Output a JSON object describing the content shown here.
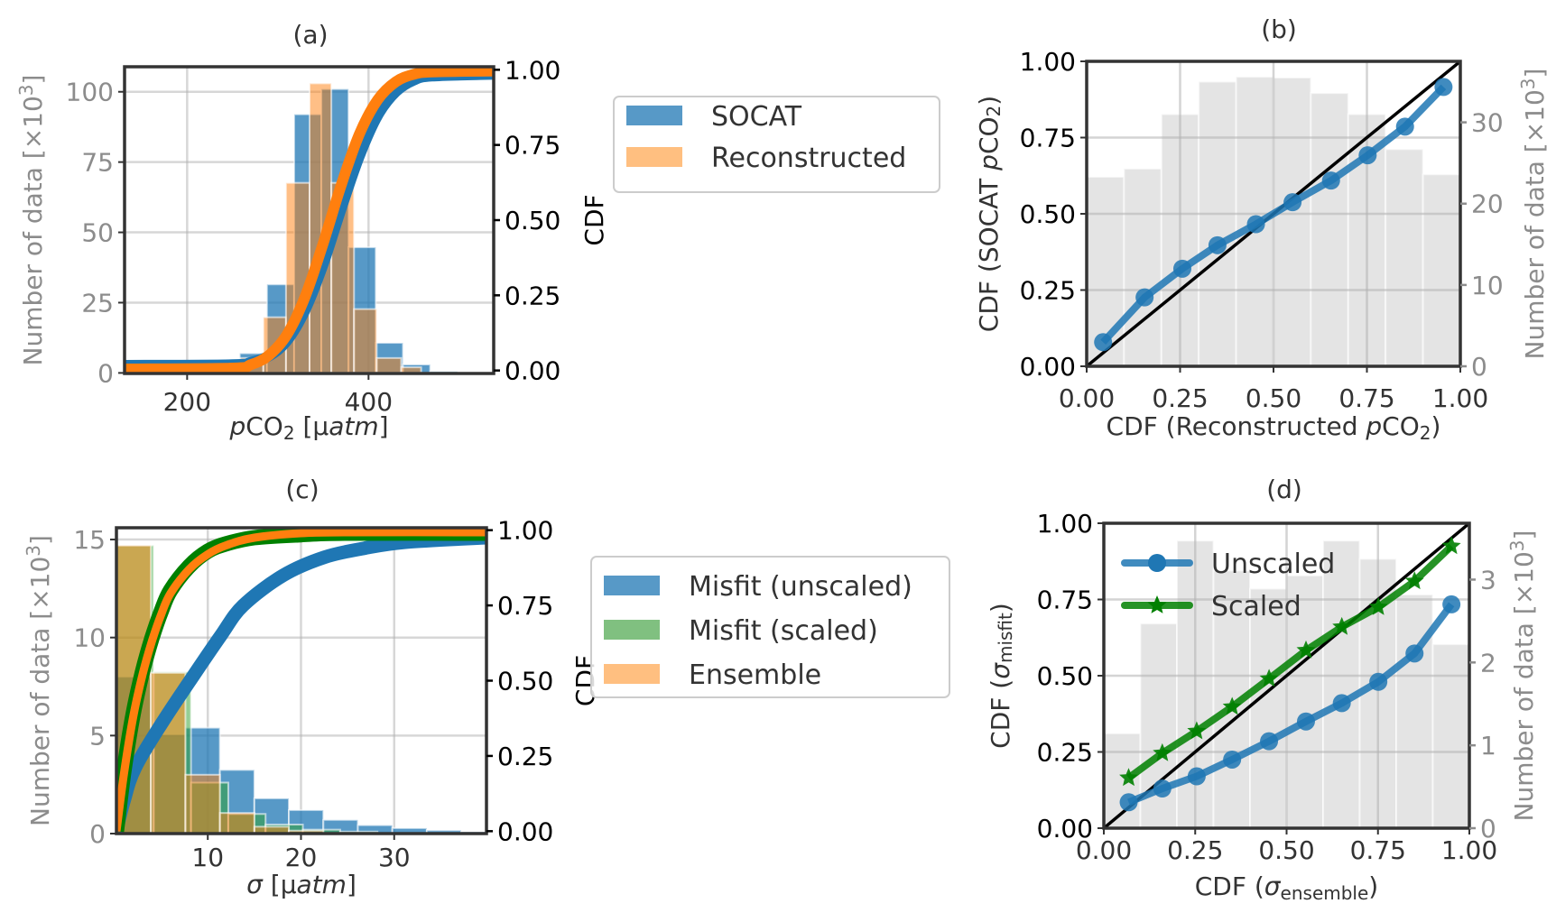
{
  "chart_data": [
    {
      "type": "bar+line",
      "title": "(a)",
      "xaxis": {
        "label": [
          {
            "t": "p",
            "i": true
          },
          {
            "t": "CO"
          },
          {
            "t": "2",
            "sub": true
          },
          {
            "t": " [µ"
          },
          {
            "t": "atm",
            "i": true
          },
          {
            "t": "]"
          }
        ],
        "xlim": [
          131,
          538
        ],
        "ticks": [
          200,
          400
        ],
        "tick_labels": [
          "200",
          "400"
        ],
        "color": "#333333"
      },
      "left_axis": {
        "label": [
          {
            "t": "Number of data [×10"
          },
          {
            "t": "3",
            "sup": true
          },
          {
            "t": "]"
          }
        ],
        "ylim": [
          -0.2,
          108.9
        ],
        "ticks": [
          0,
          25,
          50,
          75,
          100
        ],
        "tick_labels": [
          "0",
          "25",
          "50",
          "75",
          "100"
        ],
        "color": "#8c8c8c"
      },
      "right_axis": {
        "label": [
          {
            "t": "CDF"
          }
        ],
        "ylim": [
          -0.01,
          1.01
        ],
        "ticks": [
          0,
          0.25,
          0.5,
          0.75,
          1
        ],
        "tick_labels": [
          "0.00",
          "0.25",
          "0.50",
          "0.75",
          "1.00"
        ],
        "color": "#000000"
      },
      "grid": true,
      "bars": [
        {
          "name": "SOCAT",
          "axis": "left",
          "color": "#1f77b4",
          "opacity": 0.75,
          "edges": [
            258,
            288,
            318,
            348,
            378,
            408,
            438,
            468,
            498
          ],
          "counts": [
            7,
            31.5,
            92,
            101,
            44.7,
            10.7,
            3,
            0.5
          ]
        },
        {
          "name": "Reconstructed",
          "axis": "left",
          "color": "#ff7f0e",
          "opacity": 0.5,
          "edges": [
            259,
            284,
            309,
            335,
            359,
            384,
            409,
            436,
            458
          ],
          "counts": [
            5.3,
            19.8,
            67.6,
            103,
            67.6,
            22.7,
            5.3,
            2
          ]
        }
      ],
      "series": [
        {
          "axis": "right",
          "color": "#1f77b4",
          "kind": "curve",
          "x": [
            131,
            250,
            270,
            290,
            310,
            330,
            350,
            370,
            390,
            410,
            430,
            450,
            470,
            538
          ],
          "y": [
            0.017,
            0.019,
            0.027,
            0.048,
            0.099,
            0.201,
            0.354,
            0.54,
            0.714,
            0.848,
            0.927,
            0.966,
            0.979,
            0.985
          ]
        },
        {
          "axis": "right",
          "color": "#ff7f0e",
          "kind": "curve",
          "x": [
            131,
            250,
            270,
            290,
            310,
            330,
            350,
            370,
            390,
            410,
            430,
            450,
            470,
            538
          ],
          "y": [
            0.005,
            0.008,
            0.019,
            0.05,
            0.119,
            0.245,
            0.423,
            0.618,
            0.787,
            0.9,
            0.96,
            0.985,
            0.993,
            0.996
          ]
        }
      ],
      "legend": {
        "placement": "outside-right",
        "frame": true,
        "entries": [
          {
            "label": "SOCAT",
            "color": "#1f77b4",
            "kind": "patch"
          },
          {
            "label": "Reconstructed",
            "color": "#ffbf80",
            "kind": "patch"
          }
        ]
      }
    },
    {
      "type": "bar+line",
      "title": "(b)",
      "xaxis": {
        "label": [
          {
            "t": "CDF (Reconstructed "
          },
          {
            "t": "p",
            "i": true
          },
          {
            "t": "CO"
          },
          {
            "t": "2",
            "sub": true
          },
          {
            "t": ")"
          }
        ],
        "xlim": [
          0,
          1
        ],
        "ticks": [
          0,
          0.25,
          0.5,
          0.75,
          1
        ],
        "tick_labels": [
          "0.00",
          "0.25",
          "0.50",
          "0.75",
          "1.00"
        ],
        "color": "#333333"
      },
      "left_axis": {
        "label": [
          {
            "t": "CDF (SOCAT "
          },
          {
            "t": "p",
            "i": true
          },
          {
            "t": "CO"
          },
          {
            "t": "2",
            "sub": true
          },
          {
            "t": ")"
          }
        ],
        "ylim": [
          0,
          1
        ],
        "ticks": [
          0,
          0.25,
          0.5,
          0.75,
          1
        ],
        "tick_labels": [
          "0.00",
          "0.25",
          "0.50",
          "0.75",
          "1.00"
        ],
        "color": "#000000"
      },
      "right_axis": {
        "label": [
          {
            "t": "Number of data [×10"
          },
          {
            "t": "3",
            "sup": true
          },
          {
            "t": "]"
          }
        ],
        "ylim": [
          0,
          37.5
        ],
        "ticks": [
          0,
          10,
          20,
          30
        ],
        "tick_labels": [
          "0",
          "10",
          "20",
          "30"
        ],
        "color": "#8c8c8c"
      },
      "grid": true,
      "bars": [
        {
          "axis": "right",
          "color": "#d9d9d9",
          "opacity": 0.7,
          "edges": [
            0,
            0.1,
            0.2,
            0.3,
            0.4,
            0.5,
            0.6,
            0.7,
            0.8,
            0.9,
            1.0
          ],
          "counts": [
            23.3,
            24.3,
            31.0,
            35.0,
            35.6,
            35.5,
            33.6,
            31.0,
            26.7,
            23.6
          ]
        }
      ],
      "reference_line": {
        "x": [
          0,
          1
        ],
        "y": [
          0,
          1
        ],
        "color": "#000000"
      },
      "series": [
        {
          "axis": "left",
          "color": "#1f77b4",
          "kind": "line",
          "marker": "circle",
          "x": [
            0.044,
            0.155,
            0.256,
            0.35,
            0.453,
            0.551,
            0.654,
            0.752,
            0.852,
            0.955
          ],
          "y": [
            0.079,
            0.226,
            0.32,
            0.397,
            0.466,
            0.538,
            0.609,
            0.692,
            0.786,
            0.916
          ]
        }
      ]
    },
    {
      "type": "bar+line",
      "title": "(c)",
      "xaxis": {
        "label": [
          {
            "t": "σ",
            "i": true
          },
          {
            "t": " [µ"
          },
          {
            "t": "atm",
            "i": true
          },
          {
            "t": "]"
          }
        ],
        "xlim": [
          0.2,
          39.9
        ],
        "ticks": [
          10,
          20,
          30
        ],
        "tick_labels": [
          "10",
          "20",
          "30"
        ],
        "color": "#333333"
      },
      "left_axis": {
        "label": [
          {
            "t": "Number of data [×10"
          },
          {
            "t": "3",
            "sup": true
          },
          {
            "t": "]"
          }
        ],
        "ylim": [
          0,
          15.6
        ],
        "ticks": [
          0,
          5,
          10,
          15
        ],
        "tick_labels": [
          "0",
          "5",
          "10",
          "15"
        ],
        "color": "#8c8c8c"
      },
      "right_axis": {
        "label": [
          {
            "t": "CDF"
          }
        ],
        "ylim": [
          -0.008,
          1.008
        ],
        "ticks": [
          0,
          0.25,
          0.5,
          0.75,
          1
        ],
        "tick_labels": [
          "0.00",
          "0.25",
          "0.50",
          "0.75",
          "1.00"
        ],
        "color": "#000000"
      },
      "grid": true,
      "bars": [
        {
          "name": "Misfit (unscaled)",
          "axis": "left",
          "color": "#1f77b4",
          "opacity": 0.75,
          "edges": [
            0.2,
            3.9,
            7.6,
            11.3,
            15.0,
            18.7,
            22.4,
            26.1,
            29.8,
            33.5,
            37.2,
            40.9
          ],
          "counts": [
            8.0,
            5.06,
            5.4,
            3.25,
            1.8,
            1.2,
            0.7,
            0.43,
            0.28,
            0.17,
            0.09
          ]
        },
        {
          "name": "Misfit (scaled)",
          "axis": "left",
          "color": "#2ca02c",
          "opacity": 0.5,
          "edges": [
            0.2,
            4.2,
            8.2,
            12.2,
            16.2,
            20.2,
            24.2,
            28.2
          ],
          "counts": [
            14.7,
            8.25,
            2.6,
            1.0,
            0.46,
            0.2,
            0.1
          ]
        },
        {
          "name": "Ensemble",
          "axis": "left",
          "color": "#ff7f0e",
          "opacity": 0.5,
          "edges": [
            0.2,
            3.9,
            7.6,
            11.3,
            15.0,
            18.7,
            22.4
          ],
          "counts": [
            14.7,
            8.2,
            3.0,
            1.05,
            0.35,
            0.15
          ]
        }
      ],
      "series": [
        {
          "axis": "right",
          "color": "#1f77b4",
          "kind": "curve",
          "weight": "heavy",
          "x": [
            0.2,
            1,
            2.2,
            5.1,
            8.1,
            11.4,
            13.8,
            18.1,
            22.5,
            26.8,
            31.2,
            39.9
          ],
          "y": [
            0,
            0.1,
            0.21,
            0.36,
            0.5,
            0.65,
            0.75,
            0.85,
            0.91,
            0.94,
            0.96,
            0.975
          ]
        },
        {
          "axis": "right",
          "color": "#008000",
          "kind": "curve",
          "weight": "heavy",
          "x": [
            0.2,
            1,
            2,
            3,
            4,
            5,
            6,
            8,
            10,
            12,
            15,
            20,
            25,
            39.9
          ],
          "y": [
            0,
            0.2,
            0.39,
            0.53,
            0.64,
            0.73,
            0.8,
            0.88,
            0.93,
            0.955,
            0.975,
            0.985,
            0.99,
            0.99
          ]
        },
        {
          "axis": "right",
          "color": "#ff7f0e",
          "kind": "curve",
          "weight": "medium",
          "x": [
            0.2,
            1,
            2,
            3,
            4,
            5,
            6,
            8,
            10,
            12,
            15,
            20,
            25,
            39.9
          ],
          "y": [
            0,
            0.19,
            0.38,
            0.52,
            0.63,
            0.72,
            0.79,
            0.87,
            0.92,
            0.95,
            0.975,
            0.99,
            0.993,
            0.993
          ]
        }
      ],
      "legend": {
        "placement": "outside-right",
        "frame": true,
        "entries": [
          {
            "label": "Misfit (unscaled)",
            "color": "#1f77b4",
            "kind": "patch"
          },
          {
            "label": "Misfit (scaled)",
            "color": "#80c080",
            "kind": "patch"
          },
          {
            "label": "Ensemble",
            "color": "#ffbf80",
            "kind": "patch"
          }
        ]
      }
    },
    {
      "type": "bar+line",
      "title": "(d)",
      "xaxis": {
        "label": [
          {
            "t": "CDF ("
          },
          {
            "t": "σ",
            "i": true
          },
          {
            "t": "ensemble",
            "sub": true
          },
          {
            "t": ")"
          }
        ],
        "xlim": [
          0,
          1
        ],
        "ticks": [
          0,
          0.25,
          0.5,
          0.75,
          1
        ],
        "tick_labels": [
          "0.00",
          "0.25",
          "0.50",
          "0.75",
          "1.00"
        ],
        "color": "#333333"
      },
      "left_axis": {
        "label": [
          {
            "t": "CDF ("
          },
          {
            "t": "σ",
            "i": true
          },
          {
            "t": "misfit",
            "sub": true
          },
          {
            "t": ")"
          }
        ],
        "ylim": [
          0,
          1
        ],
        "ticks": [
          0,
          0.25,
          0.5,
          0.75,
          1
        ],
        "tick_labels": [
          "0.00",
          "0.25",
          "0.50",
          "0.75",
          "1.00"
        ],
        "color": "#000000"
      },
      "right_axis": {
        "label": [
          {
            "t": "Number of data [×10"
          },
          {
            "t": "3",
            "sup": true
          },
          {
            "t": "]"
          }
        ],
        "ylim": [
          0,
          3.68
        ],
        "ticks": [
          0,
          1,
          2,
          3
        ],
        "tick_labels": [
          "0",
          "1",
          "2",
          "3"
        ],
        "color": "#8c8c8c"
      },
      "grid": true,
      "bars": [
        {
          "axis": "right",
          "color": "#d9d9d9",
          "opacity": 0.7,
          "edges": [
            0,
            0.1,
            0.2,
            0.3,
            0.4,
            0.5,
            0.6,
            0.7,
            0.8,
            0.9,
            1.0
          ],
          "counts": [
            1.145,
            2.47,
            3.47,
            3.11,
            2.89,
            3.05,
            3.47,
            3.25,
            2.82,
            2.22
          ]
        }
      ],
      "reference_line": {
        "x": [
          0,
          1
        ],
        "y": [
          0,
          1
        ],
        "color": "#000000"
      },
      "series": [
        {
          "name": "Unscaled",
          "axis": "left",
          "color": "#1f77b4",
          "kind": "line",
          "marker": "circle",
          "x": [
            0.068,
            0.16,
            0.254,
            0.351,
            0.452,
            0.553,
            0.651,
            0.751,
            0.85,
            0.951
          ],
          "y": [
            0.085,
            0.13,
            0.17,
            0.225,
            0.285,
            0.35,
            0.41,
            0.48,
            0.573,
            0.734
          ]
        },
        {
          "name": "Scaled",
          "axis": "left",
          "color": "#008000",
          "kind": "line",
          "marker": "star",
          "x": [
            0.068,
            0.16,
            0.254,
            0.351,
            0.452,
            0.553,
            0.651,
            0.751,
            0.85,
            0.951
          ],
          "y": [
            0.165,
            0.246,
            0.318,
            0.398,
            0.49,
            0.583,
            0.66,
            0.725,
            0.81,
            0.925
          ]
        }
      ],
      "legend": {
        "placement": "upper-left",
        "frame": false,
        "entries": [
          {
            "label": "Unscaled",
            "color": "#1f77b4",
            "kind": "line",
            "marker": "circle"
          },
          {
            "label": "Scaled",
            "color": "#008000",
            "kind": "line",
            "marker": "star"
          }
        ]
      }
    }
  ]
}
